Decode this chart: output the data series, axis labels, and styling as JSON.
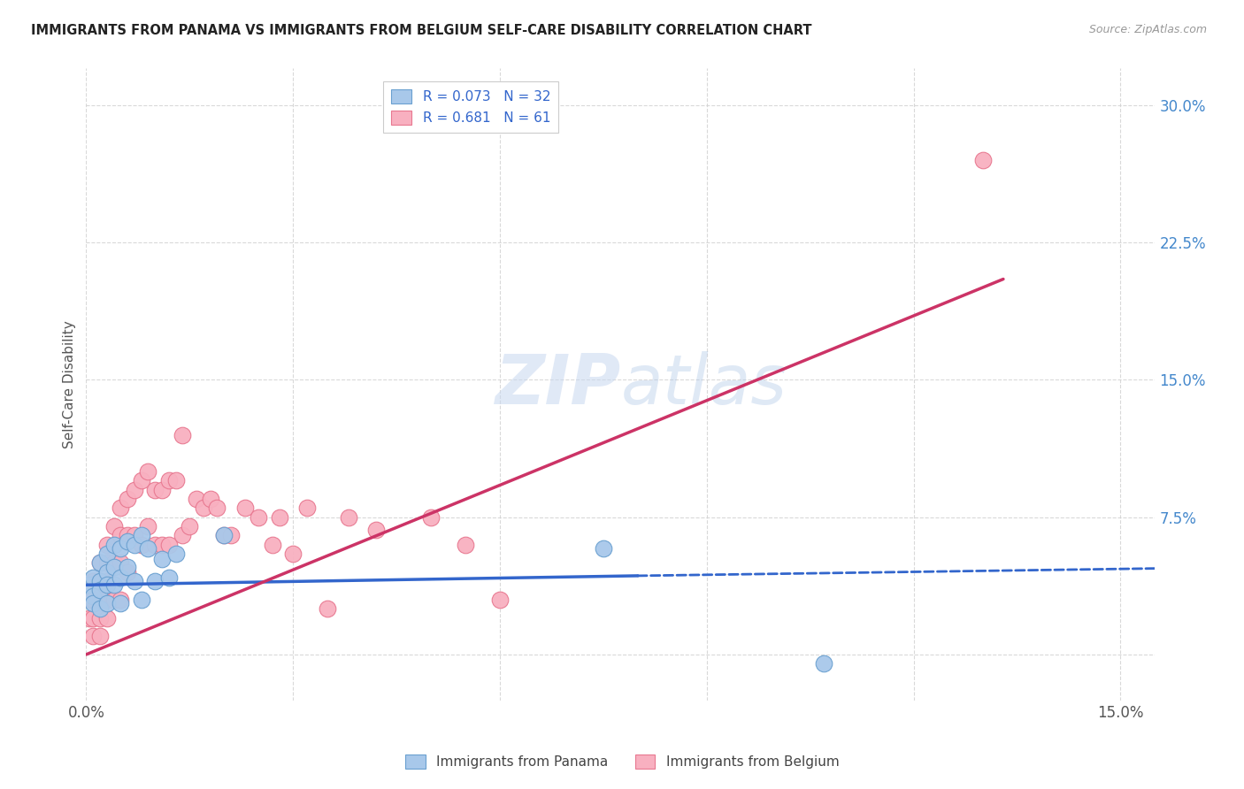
{
  "title": "IMMIGRANTS FROM PANAMA VS IMMIGRANTS FROM BELGIUM SELF-CARE DISABILITY CORRELATION CHART",
  "source": "Source: ZipAtlas.com",
  "ylabel": "Self-Care Disability",
  "xlim": [
    0.0,
    0.155
  ],
  "ylim": [
    -0.025,
    0.32
  ],
  "yticks": [
    0.0,
    0.075,
    0.15,
    0.225,
    0.3
  ],
  "yticklabels": [
    "",
    "7.5%",
    "15.0%",
    "22.5%",
    "30.0%"
  ],
  "xticks": [
    0.0,
    0.03,
    0.06,
    0.09,
    0.12,
    0.15
  ],
  "xticklabels": [
    "0.0%",
    "",
    "",
    "",
    "",
    "15.0%"
  ],
  "panama_color": "#a8c8ea",
  "panama_edge": "#6aa0d0",
  "belgium_color": "#f8b0c0",
  "belgium_edge": "#e87890",
  "watermark": "ZIPatlas",
  "grid_color": "#d0d0d0",
  "blue_line_color": "#3366cc",
  "pink_line_color": "#cc3366",
  "panama_x": [
    0.0005,
    0.001,
    0.001,
    0.001,
    0.002,
    0.002,
    0.002,
    0.002,
    0.003,
    0.003,
    0.003,
    0.003,
    0.004,
    0.004,
    0.004,
    0.005,
    0.005,
    0.005,
    0.006,
    0.006,
    0.007,
    0.007,
    0.008,
    0.008,
    0.009,
    0.01,
    0.011,
    0.012,
    0.013,
    0.02,
    0.075,
    0.107
  ],
  "panama_y": [
    0.038,
    0.042,
    0.032,
    0.028,
    0.05,
    0.04,
    0.035,
    0.025,
    0.055,
    0.045,
    0.038,
    0.028,
    0.06,
    0.048,
    0.038,
    0.058,
    0.042,
    0.028,
    0.062,
    0.048,
    0.06,
    0.04,
    0.065,
    0.03,
    0.058,
    0.04,
    0.052,
    0.042,
    0.055,
    0.065,
    0.058,
    -0.005
  ],
  "belgium_x": [
    0.0003,
    0.0005,
    0.001,
    0.001,
    0.001,
    0.001,
    0.002,
    0.002,
    0.002,
    0.002,
    0.002,
    0.003,
    0.003,
    0.003,
    0.003,
    0.003,
    0.004,
    0.004,
    0.004,
    0.005,
    0.005,
    0.005,
    0.005,
    0.006,
    0.006,
    0.006,
    0.007,
    0.007,
    0.008,
    0.008,
    0.009,
    0.009,
    0.01,
    0.01,
    0.011,
    0.011,
    0.012,
    0.012,
    0.013,
    0.014,
    0.014,
    0.015,
    0.016,
    0.017,
    0.018,
    0.019,
    0.02,
    0.021,
    0.023,
    0.025,
    0.027,
    0.028,
    0.03,
    0.032,
    0.035,
    0.038,
    0.042,
    0.05,
    0.055,
    0.06,
    0.13
  ],
  "belgium_y": [
    0.03,
    0.02,
    0.04,
    0.03,
    0.02,
    0.01,
    0.05,
    0.04,
    0.03,
    0.02,
    0.01,
    0.06,
    0.05,
    0.04,
    0.03,
    0.02,
    0.07,
    0.05,
    0.03,
    0.08,
    0.065,
    0.05,
    0.03,
    0.085,
    0.065,
    0.045,
    0.09,
    0.065,
    0.095,
    0.06,
    0.1,
    0.07,
    0.09,
    0.06,
    0.09,
    0.06,
    0.095,
    0.06,
    0.095,
    0.12,
    0.065,
    0.07,
    0.085,
    0.08,
    0.085,
    0.08,
    0.065,
    0.065,
    0.08,
    0.075,
    0.06,
    0.075,
    0.055,
    0.08,
    0.025,
    0.075,
    0.068,
    0.075,
    0.06,
    0.03,
    0.27
  ],
  "panama_line_x0": 0.0,
  "panama_line_x1": 0.08,
  "panama_line_x2": 0.155,
  "panama_line_y0": 0.038,
  "panama_line_y1": 0.043,
  "panama_line_y2": 0.047,
  "belgium_line_x0": 0.0,
  "belgium_line_x1": 0.133,
  "belgium_line_y0": 0.0,
  "belgium_line_y1": 0.205
}
